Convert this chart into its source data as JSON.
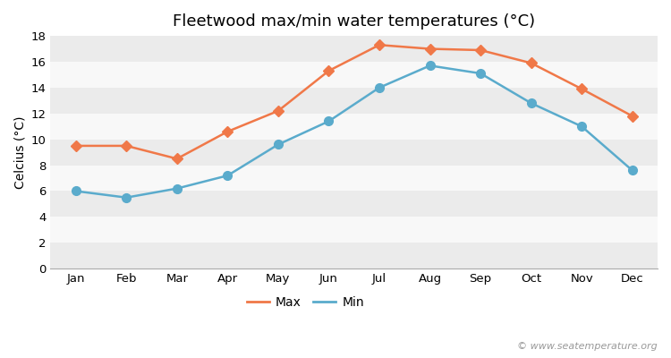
{
  "title": "Fleetwood max/min water temperatures (°C)",
  "ylabel": "Celcius (°C)",
  "months": [
    "Jan",
    "Feb",
    "Mar",
    "Apr",
    "May",
    "Jun",
    "Jul",
    "Aug",
    "Sep",
    "Oct",
    "Nov",
    "Dec"
  ],
  "max_temps": [
    9.5,
    9.5,
    8.5,
    10.6,
    12.2,
    15.3,
    17.3,
    17.0,
    16.9,
    15.9,
    13.9,
    11.8
  ],
  "min_temps": [
    6.0,
    5.5,
    6.2,
    7.2,
    9.6,
    11.4,
    14.0,
    15.7,
    15.1,
    12.8,
    11.0,
    7.6
  ],
  "max_color": "#f07848",
  "min_color": "#5aabcc",
  "fig_bg_color": "#ffffff",
  "plot_bg_color": "#ffffff",
  "band_color_light": "#ebebeb",
  "band_color_white": "#f8f8f8",
  "ylim": [
    0,
    18
  ],
  "yticks": [
    0,
    2,
    4,
    6,
    8,
    10,
    12,
    14,
    16,
    18
  ],
  "watermark": "© www.seatemperature.org",
  "title_fontsize": 13,
  "label_fontsize": 10,
  "tick_fontsize": 9.5,
  "watermark_fontsize": 8,
  "line_width": 1.8,
  "max_marker": "D",
  "min_marker": "o",
  "max_marker_size": 6,
  "min_marker_size": 7
}
